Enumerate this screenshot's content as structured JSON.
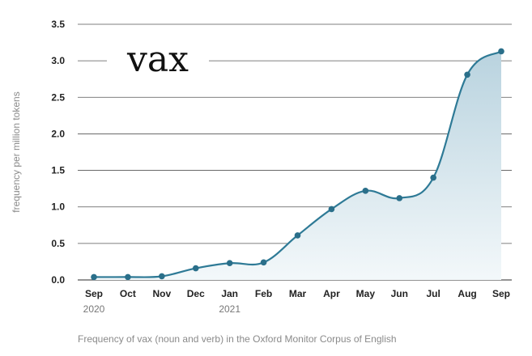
{
  "chart_data": {
    "type": "area",
    "title": "vax",
    "ylabel": "frequency per million tokens",
    "xlabel": "",
    "caption": "Frequency of vax (noun and verb) in the Oxford Monitor Corpus of English",
    "categories": [
      "Sep",
      "Oct",
      "Nov",
      "Dec",
      "Jan",
      "Feb",
      "Mar",
      "Apr",
      "May",
      "Jun",
      "Jul",
      "Aug",
      "Sep"
    ],
    "year_labels": {
      "0": "2020",
      "4": "2021"
    },
    "series": [
      {
        "values": [
          0.04,
          0.04,
          0.05,
          0.16,
          0.23,
          0.24,
          0.61,
          0.97,
          1.22,
          1.12,
          1.4,
          2.81,
          3.13
        ]
      }
    ],
    "ylim": [
      0,
      3.5
    ],
    "yticks": [
      "0.0",
      "0.5",
      "1.0",
      "1.5",
      "2.0",
      "2.5",
      "3.0",
      "3.5"
    ],
    "grid": true,
    "colors": {
      "line": "#2e7a96",
      "point": "#2a6f8a",
      "fill_top": "#b9d3df",
      "fill_bottom": "#f3f8fa",
      "grid": "#555555"
    }
  }
}
